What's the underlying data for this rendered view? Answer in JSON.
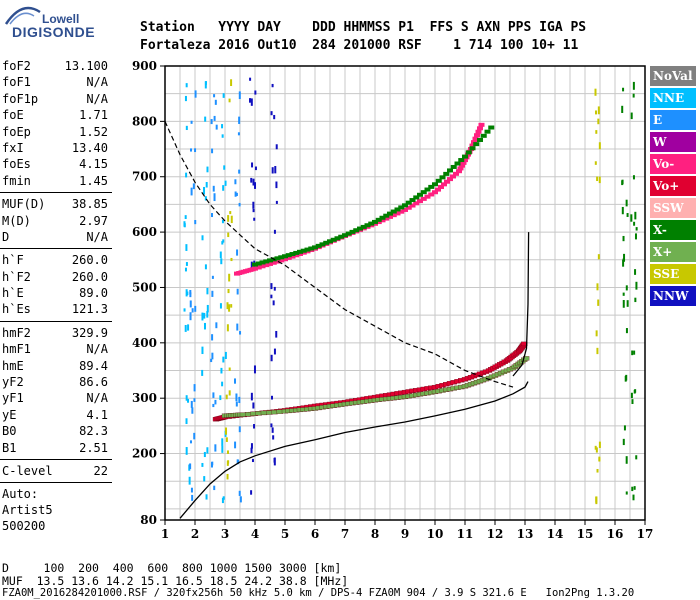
{
  "logo": {
    "line1": "Lowell",
    "line2": "DIGISONDE"
  },
  "header": {
    "labels": "Station   YYYY DAY    DDD HHMMSS P1  FFS S AXN PPS IGA PS",
    "values": "Fortaleza 2016 Out10  284 201000 RSF    1 714 100 10+ 11"
  },
  "params_group1": [
    {
      "name": "foF2",
      "value": "13.100"
    },
    {
      "name": "foF1",
      "value": "N/A"
    },
    {
      "name": "foF1p",
      "value": "N/A"
    },
    {
      "name": "foE",
      "value": "1.71"
    },
    {
      "name": "foEp",
      "value": "1.52"
    },
    {
      "name": "fxI",
      "value": "13.40"
    },
    {
      "name": "foEs",
      "value": "4.15"
    },
    {
      "name": "fmin",
      "value": "1.45"
    }
  ],
  "params_group2": [
    {
      "name": "MUF(D)",
      "value": "38.85"
    },
    {
      "name": "M(D)",
      "value": "2.97"
    },
    {
      "name": "D",
      "value": "N/A"
    }
  ],
  "params_group3": [
    {
      "name": "h`F",
      "value": "260.0"
    },
    {
      "name": "h`F2",
      "value": "260.0"
    },
    {
      "name": "h`E",
      "value": "89.0"
    },
    {
      "name": "h`Es",
      "value": "121.3"
    }
  ],
  "params_group4": [
    {
      "name": "hmF2",
      "value": "329.9"
    },
    {
      "name": "hmF1",
      "value": "N/A"
    },
    {
      "name": "hmE",
      "value": "89.4"
    },
    {
      "name": "yF2",
      "value": "86.6"
    },
    {
      "name": "yF1",
      "value": "N/A"
    },
    {
      "name": "yE",
      "value": "4.1"
    },
    {
      "name": "B0",
      "value": "82.3"
    },
    {
      "name": "B1",
      "value": "2.51"
    }
  ],
  "params_group5": [
    {
      "name": "C-level",
      "value": "22"
    }
  ],
  "auto": {
    "line1": "Auto:",
    "line2": "Artist5",
    "line3": "500200"
  },
  "legend": [
    {
      "label": "NoVal",
      "color": "#808080"
    },
    {
      "label": "NNE",
      "color": "#00bfff"
    },
    {
      "label": "E",
      "color": "#1e90ff"
    },
    {
      "label": "W",
      "color": "#a000a0"
    },
    {
      "label": "Vo-",
      "color": "#ff2080"
    },
    {
      "label": "Vo+",
      "color": "#e00030"
    },
    {
      "label": "SSW",
      "color": "#ffb0b0"
    },
    {
      "label": "X-",
      "color": "#008000"
    },
    {
      "label": "X+",
      "color": "#70b050"
    },
    {
      "label": "SSE",
      "color": "#c8c800"
    },
    {
      "label": "NNW",
      "color": "#1010c0"
    }
  ],
  "footer": {
    "line1": "D     100  200  400  600  800 1000 1500 3000 [km]",
    "line2": "MUF  13.5 13.6 14.2 15.1 16.5 18.5 24.2 38.8 [MHz]",
    "line3": "FZA0M_2016284201000.RSF / 320fx256h 50 kHz 5.0 km / DPS-4 FZA0M 904 / 3.9 S 321.6 E   Ion2Png 1.3.20"
  },
  "chart_data": {
    "type": "scatter",
    "xlim": [
      1,
      17
    ],
    "ylim": [
      80,
      900
    ],
    "xticks": [
      1,
      2,
      3,
      4,
      5,
      6,
      7,
      8,
      9,
      10,
      11,
      12,
      13,
      14,
      15,
      16,
      17
    ],
    "yticks": [
      80,
      200,
      300,
      400,
      500,
      600,
      700,
      800,
      900
    ],
    "x_minor_step": 0.5,
    "y_minor_step": 50,
    "grid": true,
    "traces": [
      {
        "name": "o-trace F",
        "color_key": "Vo+",
        "x": [
          2.7,
          3.0,
          4.0,
          5.0,
          6.0,
          7.0,
          8.0,
          9.0,
          10.0,
          11.0,
          11.8,
          12.4,
          12.8,
          13.0
        ],
        "y": [
          262,
          266,
          272,
          278,
          286,
          293,
          302,
          311,
          320,
          334,
          350,
          368,
          385,
          400
        ]
      },
      {
        "name": "x-trace F",
        "color_key": "X+",
        "x": [
          3.0,
          3.6,
          5.0,
          6.0,
          7.0,
          8.0,
          9.0,
          10.0,
          11.0,
          11.8,
          12.6,
          13.1
        ],
        "y": [
          272,
          274,
          280,
          285,
          293,
          300,
          306,
          315,
          325,
          340,
          358,
          378
        ]
      },
      {
        "name": "2nd hop o",
        "color_key": "Vo-",
        "x": [
          3.4,
          4.0,
          5.0,
          6.0,
          7.0,
          8.0,
          9.0,
          10.0,
          10.8,
          11.2,
          11.6
        ],
        "y": [
          525,
          534,
          551,
          570,
          593,
          615,
          640,
          672,
          710,
          750,
          800
        ]
      },
      {
        "name": "2nd hop x",
        "color_key": "X-",
        "x": [
          4.0,
          5.0,
          6.0,
          7.0,
          8.0,
          9.0,
          10.0,
          11.0,
          12.0
        ],
        "y": [
          545,
          560,
          576,
          598,
          622,
          652,
          690,
          740,
          800
        ]
      }
    ],
    "profile_curve": {
      "x": [
        1.5,
        2.0,
        2.5,
        3.0,
        3.5,
        4.0,
        5.0,
        6.0,
        7.0,
        8.0,
        9.0,
        10.0,
        11.0,
        12.0,
        12.6,
        13.0,
        13.1
      ],
      "y": [
        83,
        115,
        145,
        168,
        185,
        196,
        213,
        225,
        238,
        248,
        257,
        268,
        280,
        295,
        308,
        320,
        330
      ]
    },
    "profile_top": {
      "x": [
        12.6,
        12.9,
        13.05,
        13.1,
        13.12
      ],
      "y": [
        340,
        360,
        390,
        470,
        600
      ]
    },
    "muf_curve": {
      "x": [
        1.0,
        1.5,
        2.0,
        2.5,
        3.0,
        3.5,
        4.0,
        4.5,
        5.0,
        6.0,
        7.0,
        8.0,
        9.0,
        10.0,
        11.0,
        12.0,
        12.6
      ],
      "y": [
        800,
        740,
        690,
        650,
        620,
        595,
        570,
        555,
        540,
        500,
        460,
        430,
        400,
        380,
        350,
        330,
        320
      ]
    }
  }
}
